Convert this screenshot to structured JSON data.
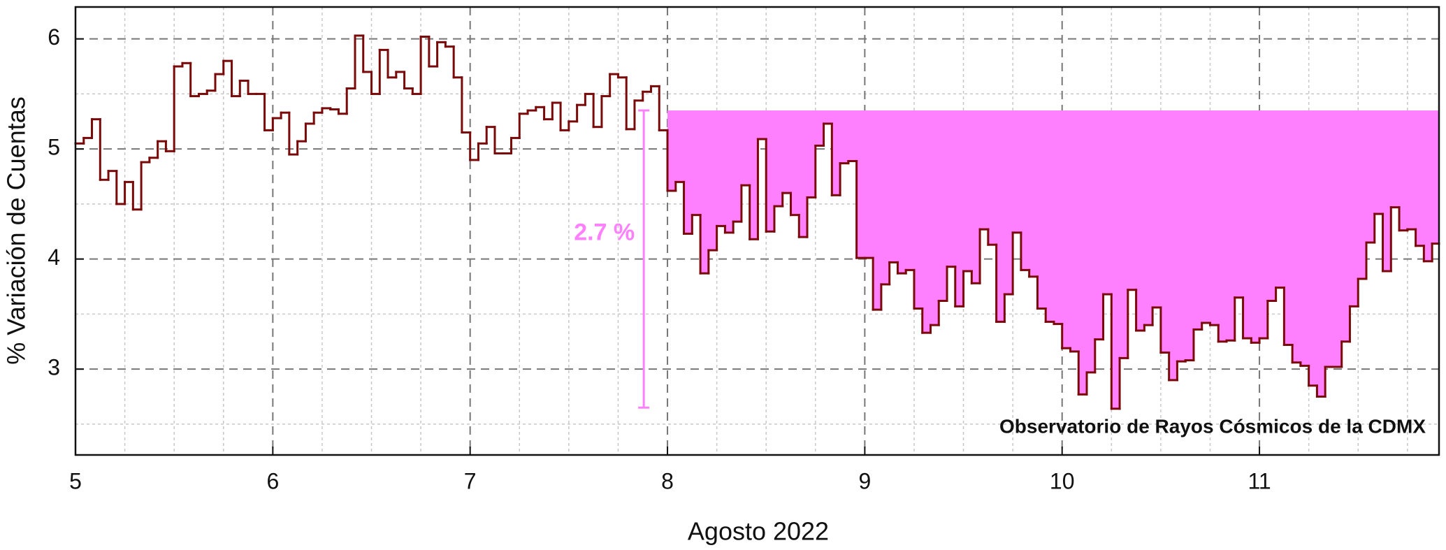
{
  "chart_data": {
    "type": "step",
    "xlabel": "Agosto 2022",
    "ylabel": "% Variación de Cuentas",
    "xlim": [
      5,
      11.91
    ],
    "ylim": [
      2.22,
      6.29
    ],
    "xticks": [
      5,
      6,
      7,
      8,
      9,
      10,
      11
    ],
    "yticks": [
      3,
      4,
      5,
      6
    ],
    "xminor_ticks": [
      5.25,
      5.5,
      5.75,
      6.25,
      6.5,
      6.75,
      7.25,
      7.5,
      7.75,
      8.25,
      8.5,
      8.75,
      9.25,
      9.5,
      9.75,
      10.25,
      10.5,
      10.75,
      11.25,
      11.5,
      11.75
    ],
    "yminor_ticks": [
      2.5,
      3.5,
      4.5,
      5.5
    ],
    "grid": true,
    "fill": {
      "from_x": 8,
      "level": 5.35,
      "color": "#ff80ff"
    },
    "error_bar": {
      "label": "2.7 %",
      "x": 7.88,
      "low": 2.65,
      "high": 5.35,
      "color": "#ff80ff"
    },
    "annotation": "Observatorio de Rayos Cósmicos de la CDMX",
    "x": [
      5,
      5.0417,
      5.0833,
      5.125,
      5.1667,
      5.2083,
      5.25,
      5.2917,
      5.3333,
      5.375,
      5.4167,
      5.4583,
      5.5,
      5.5417,
      5.5833,
      5.625,
      5.6667,
      5.7083,
      5.75,
      5.7917,
      5.8333,
      5.875,
      5.9167,
      5.9583,
      6,
      6.0417,
      6.0833,
      6.125,
      6.1667,
      6.2083,
      6.25,
      6.2917,
      6.3333,
      6.375,
      6.4167,
      6.4583,
      6.5,
      6.5417,
      6.5833,
      6.625,
      6.6667,
      6.7083,
      6.75,
      6.7917,
      6.8333,
      6.875,
      6.9167,
      6.9583,
      7,
      7.0417,
      7.0833,
      7.125,
      7.1667,
      7.2083,
      7.25,
      7.2917,
      7.3333,
      7.375,
      7.4167,
      7.4583,
      7.5,
      7.5417,
      7.5833,
      7.625,
      7.6667,
      7.7083,
      7.75,
      7.7917,
      7.8333,
      7.875,
      7.9167,
      7.9583,
      8,
      8.0417,
      8.0833,
      8.125,
      8.1667,
      8.2083,
      8.25,
      8.2917,
      8.3333,
      8.375,
      8.4167,
      8.4583,
      8.5,
      8.5417,
      8.5833,
      8.625,
      8.6667,
      8.7083,
      8.75,
      8.7917,
      8.8333,
      8.875,
      8.9167,
      8.9583,
      9,
      9.0417,
      9.0833,
      9.125,
      9.1667,
      9.2083,
      9.25,
      9.2917,
      9.3333,
      9.375,
      9.4167,
      9.4583,
      9.5,
      9.5417,
      9.5833,
      9.625,
      9.6667,
      9.7083,
      9.75,
      9.7917,
      9.8333,
      9.875,
      9.9167,
      9.9583,
      10,
      10.0417,
      10.0833,
      10.125,
      10.1667,
      10.2083,
      10.25,
      10.2917,
      10.3333,
      10.375,
      10.4167,
      10.4583,
      10.5,
      10.5417,
      10.5833,
      10.625,
      10.6667,
      10.7083,
      10.75,
      10.7917,
      10.8333,
      10.875,
      10.9167,
      10.9583,
      11,
      11.0417,
      11.0833,
      11.125,
      11.1667,
      11.2083,
      11.25,
      11.2917,
      11.3333,
      11.375,
      11.4167,
      11.4583,
      11.5,
      11.5417,
      11.5833,
      11.625,
      11.6667,
      11.7083,
      11.75,
      11.7917,
      11.8333,
      11.875
    ],
    "series": [
      {
        "color": "#7a0a0a",
        "values": [
          5.05,
          5.1,
          5.27,
          4.72,
          4.8,
          4.5,
          4.7,
          4.45,
          4.88,
          4.92,
          5.07,
          4.98,
          5.75,
          5.78,
          5.48,
          5.5,
          5.53,
          5.68,
          5.8,
          5.48,
          5.62,
          5.5,
          5.5,
          5.17,
          5.28,
          5.33,
          4.95,
          5.07,
          5.23,
          5.33,
          5.37,
          5.36,
          5.32,
          5.55,
          6.03,
          5.7,
          5.5,
          5.9,
          5.65,
          5.7,
          5.55,
          5.5,
          6.02,
          5.75,
          5.97,
          5.93,
          5.65,
          5.15,
          4.9,
          5.05,
          5.2,
          4.96,
          4.96,
          5.1,
          5.32,
          5.35,
          5.38,
          5.27,
          5.42,
          5.17,
          5.25,
          5.4,
          5.5,
          5.2,
          5.48,
          5.68,
          5.65,
          5.18,
          5.44,
          5.52,
          5.57,
          5.17,
          4.62,
          4.7,
          4.23,
          4.4,
          3.87,
          4.08,
          4.3,
          4.24,
          4.34,
          4.67,
          4.18,
          5.09,
          4.25,
          4.48,
          4.6,
          4.4,
          4.2,
          4.56,
          5.03,
          5.23,
          4.58,
          4.87,
          4.89,
          4.01,
          4.01,
          3.54,
          3.77,
          3.97,
          3.87,
          3.9,
          3.55,
          3.33,
          3.4,
          3.62,
          3.93,
          3.57,
          3.89,
          3.78,
          4.27,
          4.13,
          3.43,
          3.68,
          4.24,
          3.9,
          3.84,
          3.55,
          3.43,
          3.41,
          3.19,
          3.16,
          2.77,
          2.97,
          3.27,
          3.68,
          2.64,
          3.1,
          3.72,
          3.35,
          3.4,
          3.56,
          3.15,
          2.9,
          3.07,
          3.08,
          3.36,
          3.42,
          3.4,
          3.25,
          3.26,
          3.65,
          3.28,
          3.24,
          3.28,
          3.62,
          3.74,
          3.22,
          3.06,
          3.03,
          2.85,
          2.75,
          3.02,
          3.02,
          3.25,
          3.57,
          3.82,
          4.15,
          4.41,
          3.89,
          4.47,
          4.26,
          4.27,
          4.12,
          3.98,
          4.14
        ]
      }
    ]
  }
}
